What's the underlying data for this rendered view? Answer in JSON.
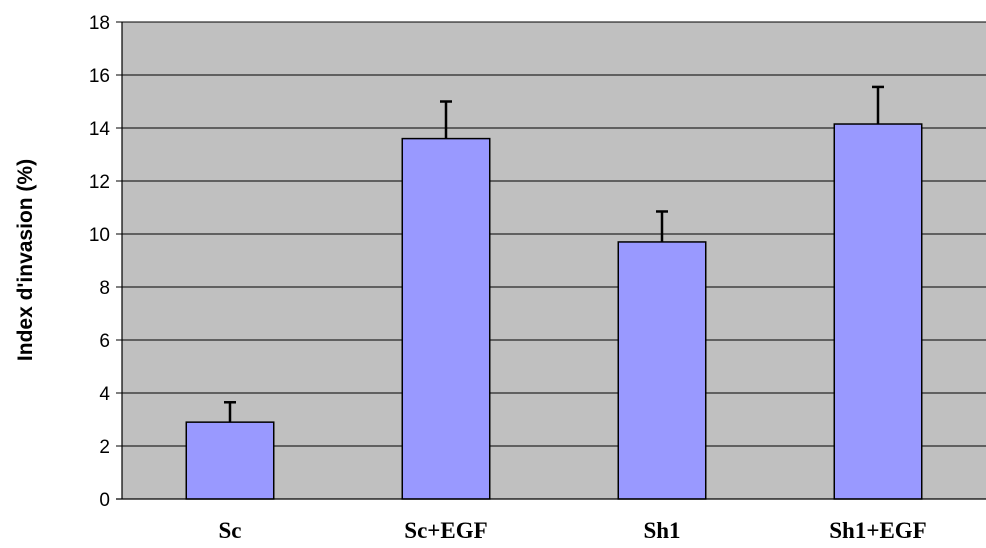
{
  "chart_data": {
    "type": "bar",
    "title": "",
    "xlabel": "",
    "ylabel": "Index d'invasion (%)",
    "ylim": [
      0,
      18
    ],
    "yticks": [
      "0",
      "2",
      "4",
      "6",
      "8",
      "10",
      "12",
      "14",
      "16",
      "18"
    ],
    "grid": true,
    "legend": "none",
    "categories": [
      "Sc",
      "Sc+EGF",
      "Sh1",
      "Sh1+EGF"
    ],
    "values": [
      2.9,
      13.6,
      9.7,
      14.15
    ],
    "error_upper": [
      0.75,
      1.4,
      1.15,
      1.4
    ],
    "colors": {
      "plot_background": "#c0c0c0",
      "bar_fill": "#9999ff",
      "bar_stroke": "#000000",
      "gridline": "#000000",
      "error_bar": "#000000"
    }
  }
}
